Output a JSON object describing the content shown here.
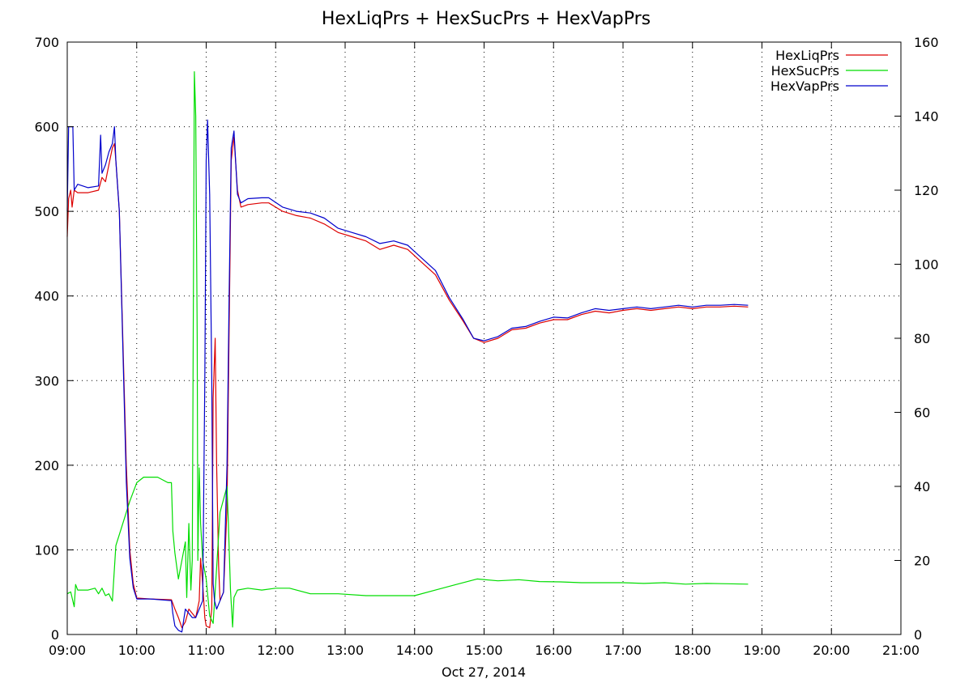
{
  "chart_data": {
    "type": "line",
    "title": "HexLiqPrs + HexSucPrs + HexVapPrs",
    "xlabel": "Oct 27, 2014",
    "ylabel": "",
    "ylim": [
      0,
      700
    ],
    "y2lim": [
      0,
      160
    ],
    "x_ticks": [
      "09:00",
      "10:00",
      "11:00",
      "12:00",
      "13:00",
      "14:00",
      "15:00",
      "16:00",
      "17:00",
      "18:00",
      "19:00",
      "20:00",
      "21:00"
    ],
    "y_ticks": [
      0,
      100,
      200,
      300,
      400,
      500,
      600,
      700
    ],
    "y2_ticks": [
      0,
      20,
      40,
      60,
      80,
      100,
      120,
      140,
      160
    ],
    "grid": true,
    "legend_position": "top-right",
    "x_units": "hours since 09:00",
    "series": [
      {
        "name": "HexLiqPrs",
        "axis": "left",
        "color": "#dd0000",
        "points": [
          [
            0.0,
            470
          ],
          [
            0.02,
            515
          ],
          [
            0.05,
            525
          ],
          [
            0.07,
            505
          ],
          [
            0.1,
            525
          ],
          [
            0.15,
            522
          ],
          [
            0.3,
            522
          ],
          [
            0.45,
            525
          ],
          [
            0.5,
            540
          ],
          [
            0.55,
            535
          ],
          [
            0.6,
            555
          ],
          [
            0.65,
            575
          ],
          [
            0.68,
            580
          ],
          [
            0.7,
            560
          ],
          [
            0.75,
            500
          ],
          [
            0.8,
            350
          ],
          [
            0.85,
            200
          ],
          [
            0.9,
            100
          ],
          [
            0.95,
            60
          ],
          [
            1.0,
            43
          ],
          [
            1.2,
            42
          ],
          [
            1.5,
            41
          ],
          [
            1.55,
            30
          ],
          [
            1.6,
            20
          ],
          [
            1.65,
            8
          ],
          [
            1.7,
            15
          ],
          [
            1.75,
            30
          ],
          [
            1.8,
            25
          ],
          [
            1.85,
            20
          ],
          [
            1.9,
            40
          ],
          [
            1.92,
            90
          ],
          [
            1.95,
            60
          ],
          [
            1.98,
            20
          ],
          [
            2.0,
            10
          ],
          [
            2.05,
            8
          ],
          [
            2.08,
            30
          ],
          [
            2.1,
            280
          ],
          [
            2.13,
            350
          ],
          [
            2.15,
            200
          ],
          [
            2.18,
            80
          ],
          [
            2.2,
            40
          ],
          [
            2.25,
            50
          ],
          [
            2.3,
            150
          ],
          [
            2.33,
            360
          ],
          [
            2.36,
            560
          ],
          [
            2.4,
            588
          ],
          [
            2.45,
            525
          ],
          [
            2.5,
            505
          ],
          [
            2.6,
            508
          ],
          [
            2.8,
            510
          ],
          [
            2.9,
            510
          ],
          [
            3.1,
            500
          ],
          [
            3.3,
            495
          ],
          [
            3.5,
            492
          ],
          [
            3.7,
            485
          ],
          [
            3.9,
            475
          ],
          [
            4.1,
            470
          ],
          [
            4.3,
            465
          ],
          [
            4.5,
            455
          ],
          [
            4.7,
            460
          ],
          [
            4.9,
            455
          ],
          [
            5.1,
            440
          ],
          [
            5.3,
            425
          ],
          [
            5.5,
            395
          ],
          [
            5.7,
            370
          ],
          [
            5.85,
            350
          ],
          [
            6.0,
            345
          ],
          [
            6.2,
            350
          ],
          [
            6.4,
            360
          ],
          [
            6.6,
            362
          ],
          [
            6.8,
            368
          ],
          [
            7.0,
            372
          ],
          [
            7.2,
            372
          ],
          [
            7.4,
            378
          ],
          [
            7.6,
            382
          ],
          [
            7.8,
            380
          ],
          [
            8.0,
            383
          ],
          [
            8.2,
            385
          ],
          [
            8.4,
            383
          ],
          [
            8.6,
            385
          ],
          [
            8.8,
            387
          ],
          [
            9.0,
            385
          ],
          [
            9.2,
            387
          ],
          [
            9.4,
            387
          ],
          [
            9.6,
            388
          ],
          [
            9.8,
            387
          ]
        ]
      },
      {
        "name": "HexSucPrs",
        "axis": "right",
        "color": "#00dd00",
        "points": [
          [
            0.0,
            11
          ],
          [
            0.05,
            11.5
          ],
          [
            0.1,
            7.5
          ],
          [
            0.12,
            13.5
          ],
          [
            0.15,
            12
          ],
          [
            0.3,
            12
          ],
          [
            0.4,
            12.5
          ],
          [
            0.45,
            11
          ],
          [
            0.5,
            12.5
          ],
          [
            0.55,
            10.5
          ],
          [
            0.6,
            11
          ],
          [
            0.65,
            9
          ],
          [
            0.7,
            24
          ],
          [
            0.8,
            30
          ],
          [
            0.9,
            36
          ],
          [
            1.0,
            41
          ],
          [
            1.1,
            42.5
          ],
          [
            1.3,
            42.5
          ],
          [
            1.45,
            41
          ],
          [
            1.5,
            41
          ],
          [
            1.52,
            28
          ],
          [
            1.55,
            22
          ],
          [
            1.6,
            15
          ],
          [
            1.65,
            20
          ],
          [
            1.7,
            25
          ],
          [
            1.72,
            10
          ],
          [
            1.75,
            30
          ],
          [
            1.78,
            12
          ],
          [
            1.8,
            20
          ],
          [
            1.83,
            152
          ],
          [
            1.85,
            140
          ],
          [
            1.87,
            80
          ],
          [
            1.88,
            20
          ],
          [
            1.9,
            45
          ],
          [
            1.92,
            30
          ],
          [
            1.95,
            20
          ],
          [
            2.0,
            15
          ],
          [
            2.05,
            5
          ],
          [
            2.1,
            3
          ],
          [
            2.15,
            18
          ],
          [
            2.2,
            33
          ],
          [
            2.3,
            40
          ],
          [
            2.32,
            30
          ],
          [
            2.35,
            12
          ],
          [
            2.38,
            2
          ],
          [
            2.4,
            10
          ],
          [
            2.45,
            12
          ],
          [
            2.6,
            12.5
          ],
          [
            2.8,
            12
          ],
          [
            3.0,
            12.5
          ],
          [
            3.2,
            12.5
          ],
          [
            3.5,
            11
          ],
          [
            3.9,
            11
          ],
          [
            4.3,
            10.5
          ],
          [
            4.7,
            10.5
          ],
          [
            5.0,
            10.5
          ],
          [
            5.3,
            12
          ],
          [
            5.6,
            13.5
          ],
          [
            5.9,
            15
          ],
          [
            6.2,
            14.5
          ],
          [
            6.5,
            14.8
          ],
          [
            6.8,
            14.3
          ],
          [
            7.1,
            14.2
          ],
          [
            7.4,
            14.0
          ],
          [
            7.7,
            14.0
          ],
          [
            8.0,
            14.0
          ],
          [
            8.3,
            13.8
          ],
          [
            8.6,
            14.0
          ],
          [
            8.9,
            13.6
          ],
          [
            9.2,
            13.8
          ],
          [
            9.5,
            13.7
          ],
          [
            9.8,
            13.6
          ]
        ]
      },
      {
        "name": "HexVapPrs",
        "axis": "left",
        "color": "#0000cc",
        "points": [
          [
            0.0,
            500
          ],
          [
            0.02,
            600
          ],
          [
            0.05,
            600
          ],
          [
            0.08,
            600
          ],
          [
            0.1,
            525
          ],
          [
            0.15,
            532
          ],
          [
            0.3,
            528
          ],
          [
            0.45,
            530
          ],
          [
            0.48,
            590
          ],
          [
            0.5,
            545
          ],
          [
            0.55,
            555
          ],
          [
            0.6,
            570
          ],
          [
            0.65,
            580
          ],
          [
            0.68,
            600
          ],
          [
            0.7,
            560
          ],
          [
            0.75,
            500
          ],
          [
            0.8,
            340
          ],
          [
            0.85,
            180
          ],
          [
            0.9,
            90
          ],
          [
            0.95,
            55
          ],
          [
            1.0,
            42
          ],
          [
            1.2,
            42
          ],
          [
            1.5,
            40
          ],
          [
            1.52,
            25
          ],
          [
            1.55,
            10
          ],
          [
            1.6,
            5
          ],
          [
            1.65,
            3
          ],
          [
            1.7,
            30
          ],
          [
            1.75,
            25
          ],
          [
            1.8,
            20
          ],
          [
            1.85,
            20
          ],
          [
            1.9,
            30
          ],
          [
            1.95,
            40
          ],
          [
            1.98,
            300
          ],
          [
            2.0,
            560
          ],
          [
            2.02,
            608
          ],
          [
            2.05,
            520
          ],
          [
            2.08,
            300
          ],
          [
            2.1,
            60
          ],
          [
            2.12,
            40
          ],
          [
            2.15,
            30
          ],
          [
            2.2,
            40
          ],
          [
            2.25,
            50
          ],
          [
            2.3,
            200
          ],
          [
            2.33,
            400
          ],
          [
            2.36,
            575
          ],
          [
            2.4,
            595
          ],
          [
            2.45,
            520
          ],
          [
            2.5,
            510
          ],
          [
            2.6,
            515
          ],
          [
            2.8,
            516
          ],
          [
            2.9,
            516
          ],
          [
            3.1,
            505
          ],
          [
            3.3,
            500
          ],
          [
            3.5,
            498
          ],
          [
            3.7,
            492
          ],
          [
            3.9,
            480
          ],
          [
            4.1,
            475
          ],
          [
            4.3,
            470
          ],
          [
            4.5,
            462
          ],
          [
            4.7,
            465
          ],
          [
            4.9,
            460
          ],
          [
            5.1,
            445
          ],
          [
            5.3,
            430
          ],
          [
            5.5,
            398
          ],
          [
            5.7,
            372
          ],
          [
            5.85,
            350
          ],
          [
            6.0,
            347
          ],
          [
            6.2,
            352
          ],
          [
            6.4,
            362
          ],
          [
            6.6,
            364
          ],
          [
            6.8,
            370
          ],
          [
            7.0,
            375
          ],
          [
            7.2,
            374
          ],
          [
            7.4,
            380
          ],
          [
            7.6,
            385
          ],
          [
            7.8,
            383
          ],
          [
            8.0,
            385
          ],
          [
            8.2,
            387
          ],
          [
            8.4,
            385
          ],
          [
            8.6,
            387
          ],
          [
            8.8,
            389
          ],
          [
            9.0,
            387
          ],
          [
            9.2,
            389
          ],
          [
            9.4,
            389
          ],
          [
            9.6,
            390
          ],
          [
            9.8,
            389
          ]
        ]
      }
    ]
  }
}
